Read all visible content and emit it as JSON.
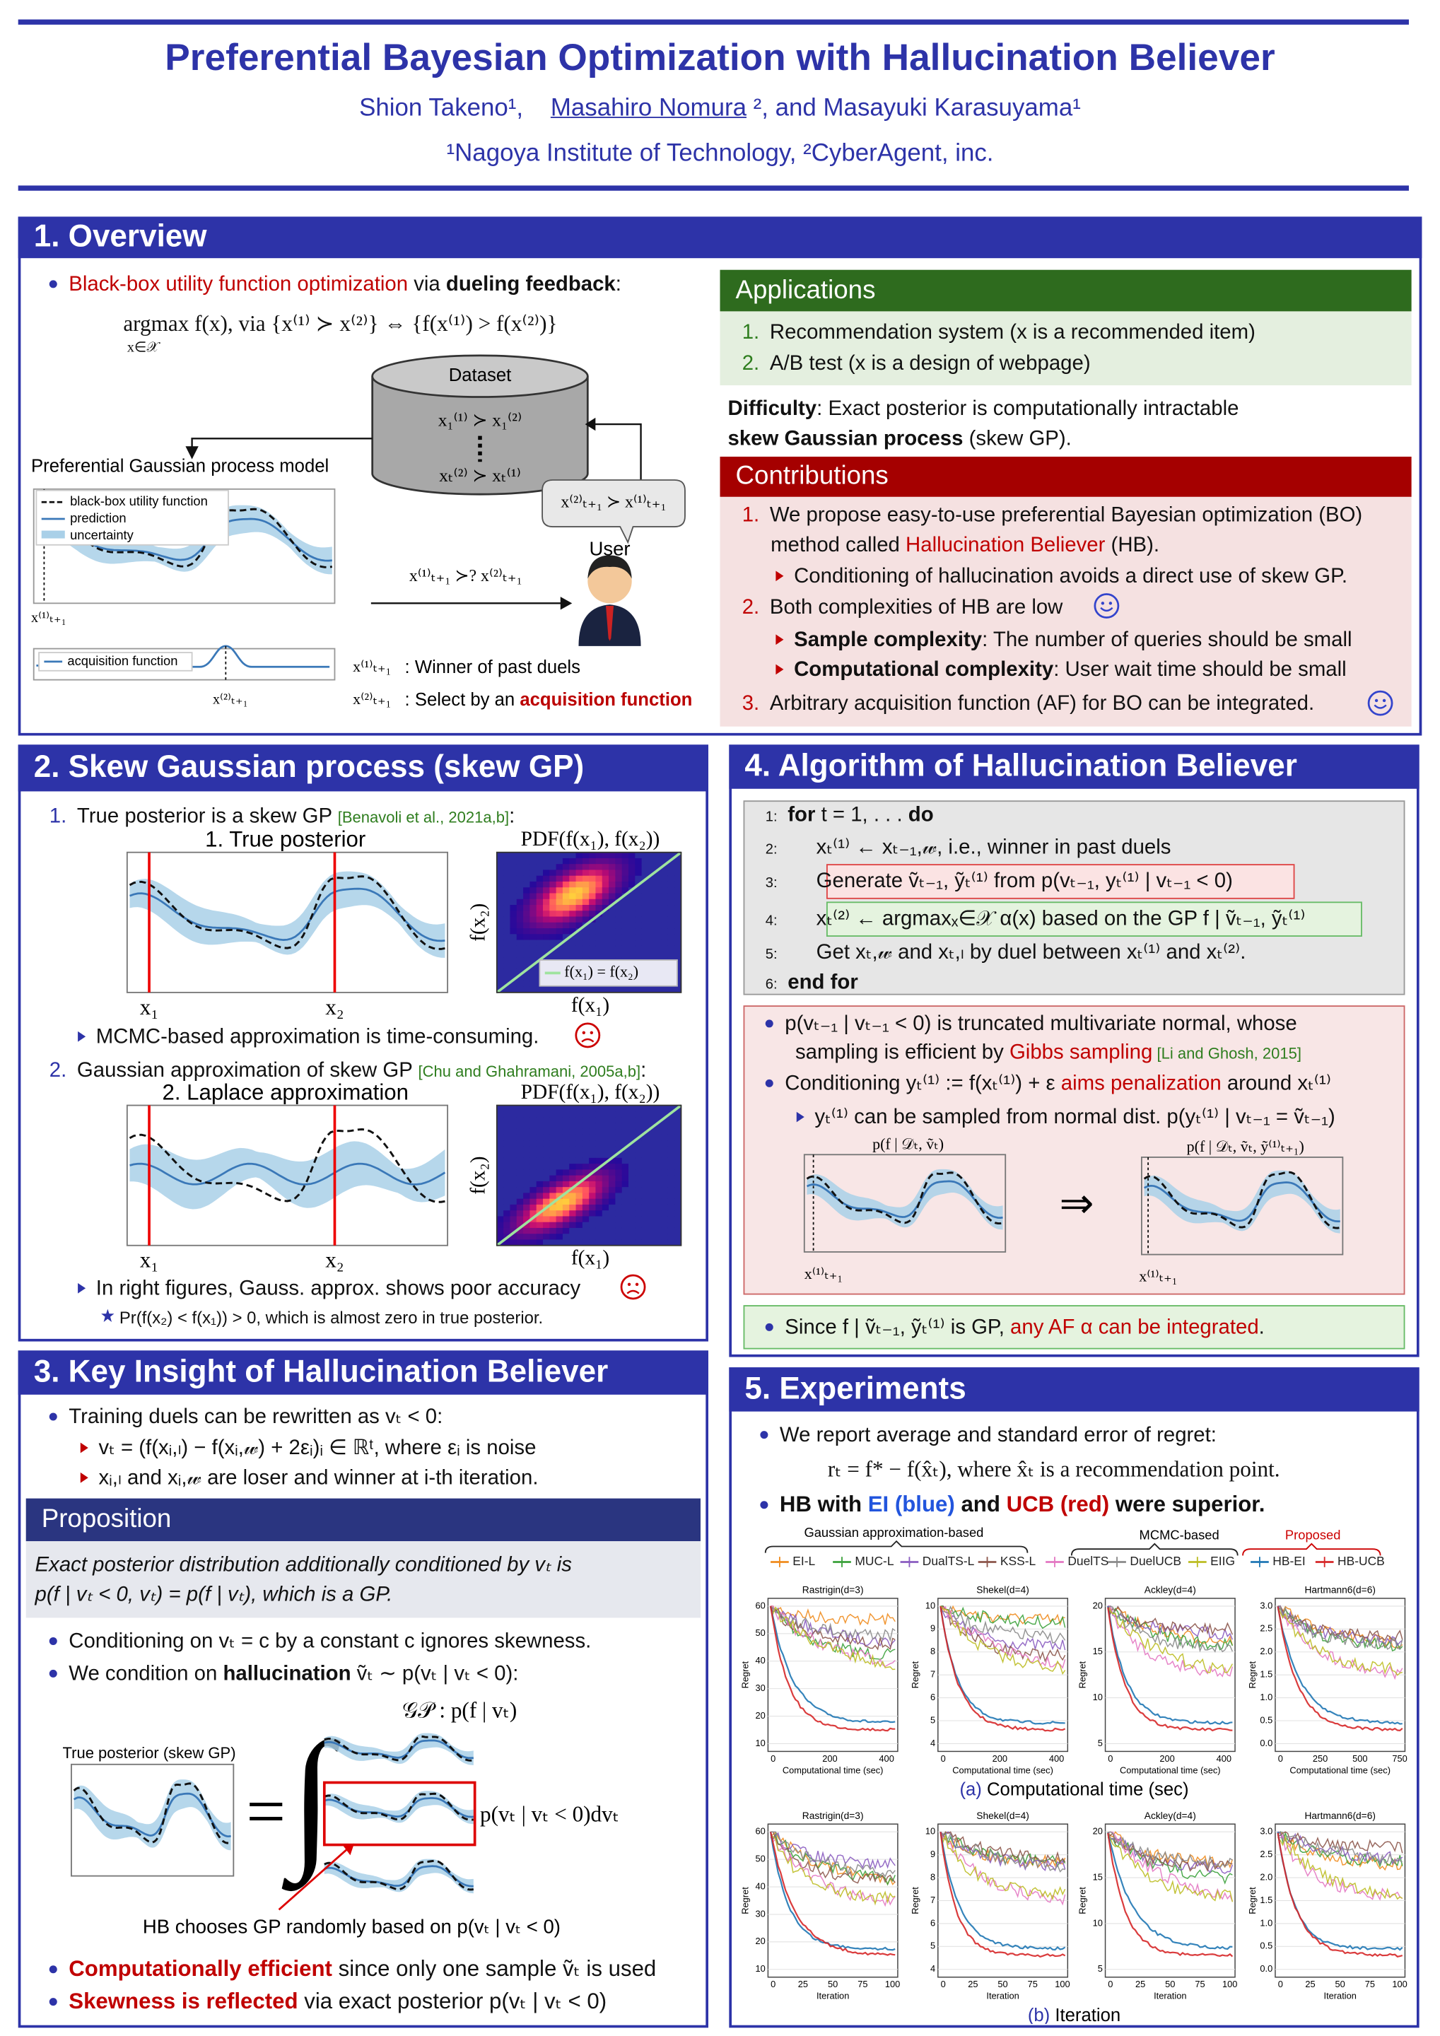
{
  "header": {
    "title": "Preferential Bayesian Optimization with Hallucination Believer",
    "authors": [
      "Shion Takeno¹,",
      "Masahiro Nomura",
      " ², and Masayuki Karasuyama¹"
    ],
    "affiliation": "¹Nagoya Institute of Technology, ²CyberAgent, inc."
  },
  "s1": {
    "heading": "1. Overview",
    "bullet": [
      "Black-box utility function optimization",
      " via ",
      "dueling feedback",
      ":"
    ],
    "formula": "argmax f(x),  via  {x⁽¹⁾ ≻ x⁽²⁾} ⇔ {f(x⁽¹⁾) > f(x⁽²⁾)}",
    "formula_sub": "x∈𝒳",
    "fig": {
      "dataset": "Dataset",
      "d1": "x₁⁽¹⁾ ≻ x₁⁽²⁾",
      "d2": "xₜ⁽²⁾ ≻ xₜ⁽¹⁾",
      "model": "Preferential Gaussian process model",
      "legend": [
        "black-box utility function",
        "prediction",
        "uncertainty"
      ],
      "xlabel": "x⁽¹⁾ₜ₊₁",
      "acq": "acquisition function",
      "xlabel2": "x⁽²⁾ₜ₊₁",
      "bubble": "x⁽²⁾ₜ₊₁ ≻ x⁽¹⁾ₜ₊₁",
      "user": "User",
      "query": "x⁽¹⁾ₜ₊₁ ≻? x⁽²⁾ₜ₊₁",
      "winner_sym": "x⁽¹⁾ₜ₊₁",
      "winner": ": Winner of past duels",
      "select_sym": "x⁽²⁾ₜ₊₁",
      "select": [
        ": Select by an ",
        "acquisition function"
      ]
    },
    "applications": {
      "heading": "Applications",
      "items": [
        [
          "1.",
          "Recommendation system (x is a recommended item)"
        ],
        [
          "2.",
          "A/B test (x is a design of webpage)"
        ]
      ]
    },
    "difficulty": [
      "Difficulty",
      ": Exact posterior is computationally intractable",
      "skew Gaussian process",
      " (skew GP)."
    ],
    "contributions": {
      "heading": "Contributions",
      "lines": [
        [
          "1.",
          "We propose easy-to-use preferential Bayesian optimization (BO)"
        ],
        [
          "method called ",
          "Hallucination Believer",
          " (HB)."
        ],
        [
          "Conditioning of hallucination avoids a direct use of skew GP."
        ],
        [
          "2.",
          "Both complexities of HB are low"
        ],
        [
          "Sample complexity",
          ": The number of queries should be small"
        ],
        [
          "Computational complexity",
          ": User wait time should be small"
        ],
        [
          "3.",
          "Arbitrary acquisition function (AF) for BO can be integrated",
          "."
        ]
      ]
    }
  },
  "s2": {
    "heading": "2. Skew Gaussian process (skew GP)",
    "item1": [
      "1.",
      "True posterior is a skew GP ",
      "[Benavoli et al., 2021a,b]",
      ":"
    ],
    "fig1": {
      "title": "1. True posterior",
      "pdf": "PDF(f(x₁), f(x₂))",
      "x1": "x₁",
      "x2": "x₂",
      "fx1": "f(x₁)",
      "fx2": "f(x₂)",
      "legend": "f(x₁) = f(x₂)"
    },
    "note1": "MCMC-based approximation is time-consuming.",
    "item2": [
      "2.",
      "Gaussian approximation of skew GP ",
      "[Chu and Ghahramani, 2005a,b]",
      ":"
    ],
    "fig2": {
      "title": "2. Laplace approximation",
      "pdf": "PDF(f(x₁), f(x₂))",
      "x1": "x₁",
      "x2": "x₂",
      "fx1": "f(x₁)",
      "fx2": "f(x₂)"
    },
    "note2": "In right figures, Gauss. approx. shows poor accuracy",
    "star": "Pr(f(x₂) < f(x₁)) > 0, which is almost zero in true posterior."
  },
  "s3": {
    "heading": "3. Key Insight of Hallucination Believer",
    "l1": "Training duels can be rewritten as vₜ < 0:",
    "l2": "vₜ = (f(xᵢ,ₗ) − f(xᵢ,𝓌) + 2εᵢ)ᵢ ∈ ℝᵗ, where εᵢ is noise",
    "l3": "xᵢ,ₗ and xᵢ,𝓌 are loser and winner at i-th iteration.",
    "prop_heading": "Proposition",
    "prop": [
      "Exact posterior distribution additionally conditioned by vₜ is",
      "p(f | vₜ < 0, vₜ) = p(f | vₜ), which is a GP."
    ],
    "l4": "Conditioning on vₜ = c by a constant c ignores skewness.",
    "l5": [
      "We condition on ",
      "hallucination",
      " ṽₜ ∼ p(vₜ | vₜ < 0):"
    ],
    "fig": {
      "true": "True posterior (skew GP)",
      "gp": "𝒢𝒫 : p(f | vₜ)",
      "eq": "=",
      "integral": "∫",
      "density": "p(vₜ | vₜ < 0)dvₜ",
      "caption": "HB chooses GP randomly based on p(vₜ | vₜ < 0)"
    },
    "l6": [
      "Computationally efficient",
      " since only one sample ṽₜ is used"
    ],
    "l7": [
      "Skewness is reflected",
      " via exact posterior p(vₜ | vₜ < 0)"
    ]
  },
  "s4": {
    "heading": "4. Algorithm of Hallucination Believer",
    "algo": [
      [
        "1:",
        "for",
        " t = 1, . . .  ",
        "do"
      ],
      [
        "2:",
        "xₜ⁽¹⁾ ← xₜ₋₁,𝓌, i.e., winner in past duels"
      ],
      [
        "3:",
        "Generate ṽₜ₋₁, ỹₜ⁽¹⁾ from p(vₜ₋₁, yₜ⁽¹⁾ | vₜ₋₁ < 0)"
      ],
      [
        "4:",
        "xₜ⁽²⁾ ← argmaxₓ∈𝒳 α(x) based on the GP f | ṽₜ₋₁, ỹₜ⁽¹⁾"
      ],
      [
        "5:",
        "Get xₜ,𝓌 and xₜ,ₗ by duel between xₜ⁽¹⁾ and xₜ⁽²⁾."
      ],
      [
        "6:",
        "end for"
      ]
    ],
    "p1": [
      "p(vₜ₋₁ | vₜ₋₁ < 0) is truncated multivariate normal, whose"
    ],
    "p2": [
      "sampling is efficient by ",
      "Gibbs sampling",
      " [Li and Ghosh, 2015]"
    ],
    "p3": [
      "Conditioning yₜ⁽¹⁾ := f(xₜ⁽¹⁾) + ε ",
      "aims penalization",
      " around xₜ⁽¹⁾"
    ],
    "p4": "yₜ⁽¹⁾ can be sampled from normal dist. p(yₜ⁽¹⁾ | vₜ₋₁ = ṽₜ₋₁)",
    "fig": {
      "left": "p(f | 𝒟ₜ, ṽₜ)",
      "arrow": "⇒",
      "right": "p(f | 𝒟ₜ, ṽₜ, ỹ⁽¹⁾ₜ₊₁)",
      "xl": "x⁽¹⁾ₜ₊₁",
      "xr": "x⁽¹⁾ₜ₊₁"
    },
    "since": [
      "Since f | ṽₜ₋₁, ỹₜ⁽¹⁾ is GP, ",
      "any AF α can be integrated",
      "."
    ]
  },
  "s5": {
    "heading": "5. Experiments",
    "l1": "We report average and standard error of regret:",
    "l2": "rₜ = f* − f(x̂ₜ),  where x̂ₜ is a recommendation point.",
    "l3": [
      "HB with ",
      "EI (blue)",
      " and ",
      "UCB (red)",
      " were superior."
    ],
    "groups": [
      "Gaussian approximation-based",
      "MCMC-based",
      "Proposed"
    ],
    "methods": [
      {
        "name": "EI-L",
        "color": "#f08c1e"
      },
      {
        "name": "MUC-L",
        "color": "#3aa13a"
      },
      {
        "name": "DualTS-L",
        "color": "#8a5cc0"
      },
      {
        "name": "KSS-L",
        "color": "#8c564b"
      },
      {
        "name": "DuelTS",
        "color": "#e377c2"
      },
      {
        "name": "DuelUCB",
        "color": "#8a8a8a"
      },
      {
        "name": "EIIG",
        "color": "#bcbd22"
      },
      {
        "name": "HB-EI",
        "color": "#1f77b4"
      },
      {
        "name": "HB-UCB",
        "color": "#d62728"
      }
    ],
    "ylabel": "Regret",
    "rows": [
      {
        "xlabel": "Computational time (sec)",
        "caption": [
          "(a)",
          " Computational time (sec)"
        ],
        "panels": [
          {
            "title": "Rastrigin(d=3)",
            "xticks": [
              "0",
              "200",
              "400"
            ],
            "yticks": [
              "10",
              "20",
              "30",
              "40",
              "50",
              "60"
            ]
          },
          {
            "title": "Shekel(d=4)",
            "xticks": [
              "0",
              "200",
              "400"
            ],
            "yticks": [
              "4",
              "5",
              "6",
              "7",
              "8",
              "9",
              "10"
            ]
          },
          {
            "title": "Ackley(d=4)",
            "xticks": [
              "0",
              "200",
              "400"
            ],
            "yticks": [
              "5",
              "10",
              "15",
              "20"
            ]
          },
          {
            "title": "Hartmann6(d=6)",
            "xticks": [
              "0",
              "250",
              "500",
              "750"
            ],
            "yticks": [
              "0.0",
              "0.5",
              "1.0",
              "1.5",
              "2.0",
              "2.5",
              "3.0"
            ]
          }
        ]
      },
      {
        "xlabel": "Iteration",
        "caption": [
          "(b)",
          " Iteration"
        ],
        "panels": [
          {
            "title": "Rastrigin(d=3)",
            "xticks": [
              "0",
              "25",
              "50",
              "75",
              "100"
            ],
            "yticks": [
              "10",
              "20",
              "30",
              "40",
              "50",
              "60"
            ]
          },
          {
            "title": "Shekel(d=4)",
            "xticks": [
              "0",
              "25",
              "50",
              "75",
              "100"
            ],
            "yticks": [
              "4",
              "5",
              "6",
              "7",
              "8",
              "9",
              "10"
            ]
          },
          {
            "title": "Ackley(d=4)",
            "xticks": [
              "0",
              "25",
              "50",
              "75",
              "100"
            ],
            "yticks": [
              "5",
              "10",
              "15",
              "20"
            ]
          },
          {
            "title": "Hartmann6(d=6)",
            "xticks": [
              "0",
              "25",
              "50",
              "75",
              "100"
            ],
            "yticks": [
              "0.0",
              "0.5",
              "1.0",
              "1.5",
              "2.0",
              "2.5",
              "3.0"
            ]
          }
        ]
      }
    ]
  }
}
